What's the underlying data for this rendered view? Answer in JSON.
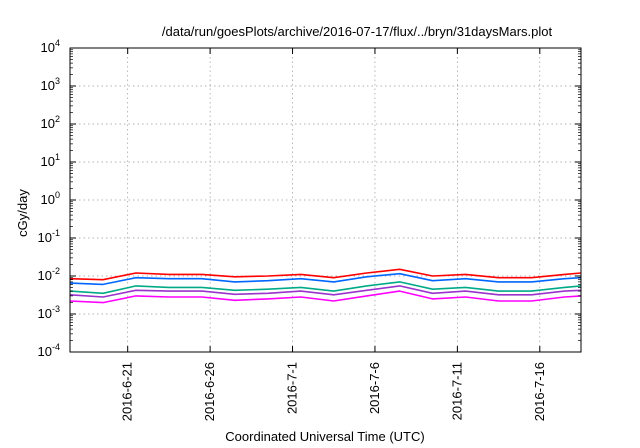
{
  "chart_data": {
    "type": "line",
    "title": "/data/run/goesPlots/archive/2016-07-17/flux/../bryn/31daysMars.plot",
    "xlabel": "Coordinated Universal Time (UTC)",
    "ylabel": "cGy/day",
    "yscale": "log",
    "ylim": [
      0.0001,
      10000
    ],
    "y_ticks": [
      {
        "base": "10",
        "exp": "-4",
        "value": 0.0001
      },
      {
        "base": "10",
        "exp": "-3",
        "value": 0.001
      },
      {
        "base": "10",
        "exp": "-2",
        "value": 0.01
      },
      {
        "base": "10",
        "exp": "-1",
        "value": 0.1
      },
      {
        "base": "10",
        "exp": "0",
        "value": 1
      },
      {
        "base": "10",
        "exp": "1",
        "value": 10
      },
      {
        "base": "10",
        "exp": "2",
        "value": 100
      },
      {
        "base": "10",
        "exp": "3",
        "value": 1000
      },
      {
        "base": "10",
        "exp": "4",
        "value": 10000
      }
    ],
    "xlim": [
      "2016-06-17T12:00",
      "2016-07-18T12:00"
    ],
    "x_ticks": [
      "2016-6-21",
      "2016-6-26",
      "2016-7-1",
      "2016-7-6",
      "2016-7-11",
      "2016-7-16"
    ],
    "grid": true,
    "legend": "none",
    "series": [
      {
        "color": "#ff0000",
        "points": [
          [
            "2016-06-17T12:00",
            0.0085
          ],
          [
            "2016-06-19T12:00",
            0.008
          ],
          [
            "2016-06-21T12:00",
            0.012
          ],
          [
            "2016-06-23T12:00",
            0.011
          ],
          [
            "2016-06-25T12:00",
            0.011
          ],
          [
            "2016-06-27T12:00",
            0.0095
          ],
          [
            "2016-06-29T12:00",
            0.01
          ],
          [
            "2016-07-01T12:00",
            0.011
          ],
          [
            "2016-07-03T12:00",
            0.009
          ],
          [
            "2016-07-05T12:00",
            0.012
          ],
          [
            "2016-07-07T12:00",
            0.015
          ],
          [
            "2016-07-09T12:00",
            0.01
          ],
          [
            "2016-07-11T12:00",
            0.011
          ],
          [
            "2016-07-13T12:00",
            0.009
          ],
          [
            "2016-07-15T12:00",
            0.009
          ],
          [
            "2016-07-17T12:00",
            0.011
          ],
          [
            "2016-07-18T12:00",
            0.012
          ]
        ]
      },
      {
        "color": "#0066ff",
        "points": [
          [
            "2016-06-17T12:00",
            0.0065
          ],
          [
            "2016-06-19T12:00",
            0.006
          ],
          [
            "2016-06-21T12:00",
            0.009
          ],
          [
            "2016-06-23T12:00",
            0.0085
          ],
          [
            "2016-06-25T12:00",
            0.0085
          ],
          [
            "2016-06-27T12:00",
            0.007
          ],
          [
            "2016-06-29T12:00",
            0.0075
          ],
          [
            "2016-07-01T12:00",
            0.0085
          ],
          [
            "2016-07-03T12:00",
            0.007
          ],
          [
            "2016-07-05T12:00",
            0.0095
          ],
          [
            "2016-07-07T12:00",
            0.0115
          ],
          [
            "2016-07-09T12:00",
            0.0075
          ],
          [
            "2016-07-11T12:00",
            0.0085
          ],
          [
            "2016-07-13T12:00",
            0.007
          ],
          [
            "2016-07-15T12:00",
            0.007
          ],
          [
            "2016-07-17T12:00",
            0.0085
          ],
          [
            "2016-07-18T12:00",
            0.009
          ]
        ]
      },
      {
        "color": "#00aa88",
        "points": [
          [
            "2016-06-17T12:00",
            0.004
          ],
          [
            "2016-06-19T12:00",
            0.0035
          ],
          [
            "2016-06-21T12:00",
            0.0055
          ],
          [
            "2016-06-23T12:00",
            0.005
          ],
          [
            "2016-06-25T12:00",
            0.005
          ],
          [
            "2016-06-27T12:00",
            0.0042
          ],
          [
            "2016-06-29T12:00",
            0.0045
          ],
          [
            "2016-07-01T12:00",
            0.005
          ],
          [
            "2016-07-03T12:00",
            0.004
          ],
          [
            "2016-07-05T12:00",
            0.0055
          ],
          [
            "2016-07-07T12:00",
            0.007
          ],
          [
            "2016-07-09T12:00",
            0.0045
          ],
          [
            "2016-07-11T12:00",
            0.005
          ],
          [
            "2016-07-13T12:00",
            0.004
          ],
          [
            "2016-07-15T12:00",
            0.004
          ],
          [
            "2016-07-17T12:00",
            0.005
          ],
          [
            "2016-07-18T12:00",
            0.0055
          ]
        ]
      },
      {
        "color": "#9933cc",
        "points": [
          [
            "2016-06-17T12:00",
            0.0032
          ],
          [
            "2016-06-19T12:00",
            0.0028
          ],
          [
            "2016-06-21T12:00",
            0.0042
          ],
          [
            "2016-06-23T12:00",
            0.004
          ],
          [
            "2016-06-25T12:00",
            0.004
          ],
          [
            "2016-06-27T12:00",
            0.0033
          ],
          [
            "2016-06-29T12:00",
            0.0035
          ],
          [
            "2016-07-01T12:00",
            0.004
          ],
          [
            "2016-07-03T12:00",
            0.0032
          ],
          [
            "2016-07-05T12:00",
            0.0042
          ],
          [
            "2016-07-07T12:00",
            0.0055
          ],
          [
            "2016-07-09T12:00",
            0.0035
          ],
          [
            "2016-07-11T12:00",
            0.004
          ],
          [
            "2016-07-13T12:00",
            0.0032
          ],
          [
            "2016-07-15T12:00",
            0.0032
          ],
          [
            "2016-07-17T12:00",
            0.004
          ],
          [
            "2016-07-18T12:00",
            0.0042
          ]
        ]
      },
      {
        "color": "#ff00ff",
        "points": [
          [
            "2016-06-17T12:00",
            0.0022
          ],
          [
            "2016-06-19T12:00",
            0.002
          ],
          [
            "2016-06-21T12:00",
            0.003
          ],
          [
            "2016-06-23T12:00",
            0.0028
          ],
          [
            "2016-06-25T12:00",
            0.0028
          ],
          [
            "2016-06-27T12:00",
            0.0023
          ],
          [
            "2016-06-29T12:00",
            0.0025
          ],
          [
            "2016-07-01T12:00",
            0.0028
          ],
          [
            "2016-07-03T12:00",
            0.0022
          ],
          [
            "2016-07-05T12:00",
            0.003
          ],
          [
            "2016-07-07T12:00",
            0.004
          ],
          [
            "2016-07-09T12:00",
            0.0025
          ],
          [
            "2016-07-11T12:00",
            0.0028
          ],
          [
            "2016-07-13T12:00",
            0.0022
          ],
          [
            "2016-07-15T12:00",
            0.0022
          ],
          [
            "2016-07-17T12:00",
            0.0028
          ],
          [
            "2016-07-18T12:00",
            0.003
          ]
        ]
      }
    ]
  }
}
